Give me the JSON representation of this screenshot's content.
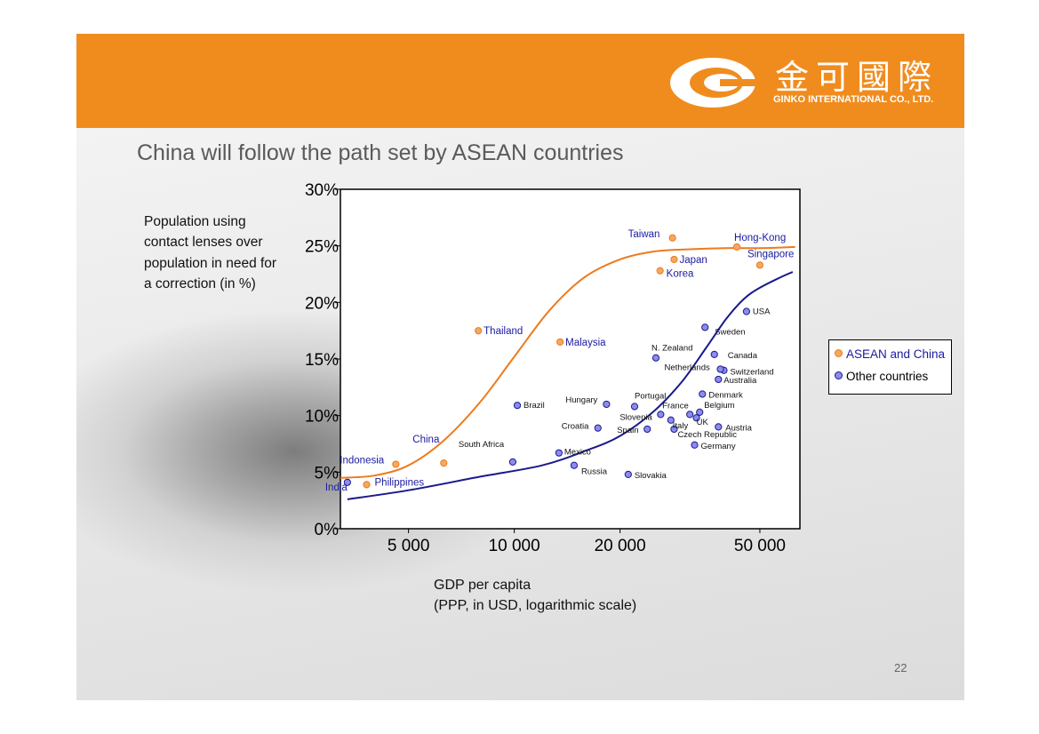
{
  "slide": {
    "logo_cn": "金可國際",
    "logo_en": "GINKO INTERNATIONAL CO., LTD.",
    "title": "China will follow the path set by ASEAN countries",
    "y_description": "Population using contact lenses over population in need for a correction (in %)",
    "x_description_line1": "GDP per capita",
    "x_description_line2": "(PPP, in USD, logarithmic scale)",
    "page_number": "22"
  },
  "colors": {
    "header": "#f08c1e",
    "asean": "#ee7a1c",
    "others": "#1a1a8c",
    "asean_fill": "#f4a860",
    "others_fill": "#8c8cf0"
  },
  "chart_data": {
    "type": "scatter",
    "x_scale": "log",
    "xlim": [
      3200,
      65000
    ],
    "ylim": [
      0,
      30
    ],
    "x_ticks": [
      5000,
      10000,
      20000,
      50000
    ],
    "x_tick_labels": [
      "5 000",
      "10 000",
      "20 000",
      "50 000"
    ],
    "y_ticks": [
      0,
      5,
      10,
      15,
      20,
      25,
      30
    ],
    "y_tick_labels": [
      "0%",
      "5%",
      "10%",
      "15%",
      "20%",
      "25%",
      "30%"
    ],
    "legend": [
      "ASEAN and China",
      "Other countries"
    ],
    "legend_position": "right",
    "series": [
      {
        "name": "ASEAN and China",
        "points": [
          {
            "label": "India",
            "x": 3350,
            "y": 4.1
          },
          {
            "label": "Philippines",
            "x": 3800,
            "y": 3.9
          },
          {
            "label": "Indonesia",
            "x": 4600,
            "y": 5.7
          },
          {
            "label": "China",
            "x": 6300,
            "y": 5.8
          },
          {
            "label": "Thailand",
            "x": 7900,
            "y": 17.5
          },
          {
            "label": "Malaysia",
            "x": 13500,
            "y": 16.5
          },
          {
            "label": "Korea",
            "x": 26000,
            "y": 22.8
          },
          {
            "label": "Japan",
            "x": 28500,
            "y": 23.8
          },
          {
            "label": "Taiwan",
            "x": 28200,
            "y": 25.7
          },
          {
            "label": "Hong-Kong",
            "x": 43000,
            "y": 24.9
          },
          {
            "label": "Singapore",
            "x": 50000,
            "y": 23.3
          }
        ],
        "trend": [
          [
            3200,
            4.5
          ],
          [
            4000,
            4.7
          ],
          [
            5000,
            5.6
          ],
          [
            6300,
            7.8
          ],
          [
            8000,
            11.2
          ],
          [
            10000,
            15.2
          ],
          [
            12600,
            19.3
          ],
          [
            15800,
            22.2
          ],
          [
            20000,
            23.8
          ],
          [
            25000,
            24.5
          ],
          [
            31600,
            24.7
          ],
          [
            40000,
            24.8
          ],
          [
            50000,
            24.8
          ],
          [
            63000,
            24.9
          ]
        ]
      },
      {
        "name": "Other countries",
        "points": [
          {
            "label": "India",
            "x": 3350,
            "y": 4.1
          },
          {
            "label": "South Africa",
            "x": 9900,
            "y": 5.9
          },
          {
            "label": "Mexico",
            "x": 13400,
            "y": 6.7
          },
          {
            "label": "Russia",
            "x": 14800,
            "y": 5.6
          },
          {
            "label": "Brazil",
            "x": 10200,
            "y": 10.9
          },
          {
            "label": "Hungary",
            "x": 18300,
            "y": 11.0
          },
          {
            "label": "Croatia",
            "x": 17300,
            "y": 8.9
          },
          {
            "label": "Spain",
            "x": 23900,
            "y": 8.8
          },
          {
            "label": "Portugal",
            "x": 22000,
            "y": 10.8
          },
          {
            "label": "Slovenia",
            "x": 26100,
            "y": 10.1
          },
          {
            "label": "Slovakia",
            "x": 21100,
            "y": 4.8
          },
          {
            "label": "France",
            "x": 31600,
            "y": 10.1
          },
          {
            "label": "Belgium",
            "x": 33700,
            "y": 10.3
          },
          {
            "label": "Italy",
            "x": 27900,
            "y": 9.6
          },
          {
            "label": "UK",
            "x": 33000,
            "y": 9.8
          },
          {
            "label": "Czech Republic",
            "x": 28500,
            "y": 8.8
          },
          {
            "label": "Austria",
            "x": 38100,
            "y": 9.0
          },
          {
            "label": "Germany",
            "x": 32600,
            "y": 7.4
          },
          {
            "label": "Denmark",
            "x": 34300,
            "y": 11.9
          },
          {
            "label": "Australia",
            "x": 38100,
            "y": 13.2
          },
          {
            "label": "Switzerland",
            "x": 39500,
            "y": 14.0
          },
          {
            "label": "Netherlands",
            "x": 38600,
            "y": 14.1
          },
          {
            "label": "N. Zealand",
            "x": 25300,
            "y": 15.1
          },
          {
            "label": "Canada",
            "x": 37100,
            "y": 15.4
          },
          {
            "label": "Sweden",
            "x": 34900,
            "y": 17.8
          },
          {
            "label": "USA",
            "x": 45800,
            "y": 19.2
          }
        ],
        "trend": [
          [
            3350,
            2.6
          ],
          [
            5000,
            3.4
          ],
          [
            8000,
            4.6
          ],
          [
            12000,
            5.6
          ],
          [
            16000,
            6.9
          ],
          [
            20000,
            8.2
          ],
          [
            25000,
            10.4
          ],
          [
            30000,
            13.0
          ],
          [
            35000,
            15.9
          ],
          [
            40000,
            18.5
          ],
          [
            45000,
            20.3
          ],
          [
            50000,
            21.3
          ],
          [
            58000,
            22.3
          ],
          [
            62000,
            22.7
          ]
        ]
      }
    ]
  }
}
